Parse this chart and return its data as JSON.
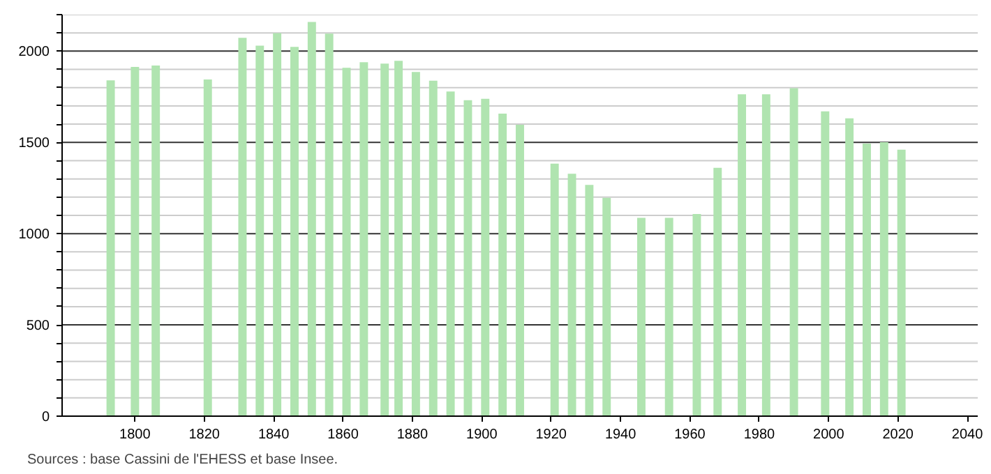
{
  "chart_data": {
    "type": "bar",
    "x": [
      1793,
      1800,
      1806,
      1821,
      1831,
      1836,
      1841,
      1846,
      1851,
      1856,
      1861,
      1866,
      1872,
      1876,
      1881,
      1886,
      1891,
      1896,
      1901,
      1906,
      1911,
      1921,
      1926,
      1931,
      1936,
      1946,
      1954,
      1962,
      1968,
      1975,
      1982,
      1990,
      1999,
      2006,
      2011,
      2016,
      2021
    ],
    "values": [
      1840,
      1914,
      1921,
      1845,
      2073,
      2030,
      2099,
      2023,
      2160,
      2096,
      1909,
      1939,
      1932,
      1947,
      1886,
      1838,
      1779,
      1731,
      1739,
      1658,
      1597,
      1384,
      1328,
      1267,
      1196,
      1087,
      1087,
      1108,
      1361,
      1764,
      1764,
      1797,
      1670,
      1632,
      1493,
      1501,
      1460
    ],
    "color": "#b0e4b0",
    "xlim": [
      1779,
      2043
    ],
    "xticks": [
      1800,
      1820,
      1840,
      1860,
      1880,
      1900,
      1920,
      1940,
      1960,
      1980,
      2000,
      2020,
      2040
    ],
    "ylim": [
      0,
      2200
    ],
    "yticks": [
      0,
      {
        "value": 100,
        "label": null
      },
      {
        "value": 200,
        "label": null
      },
      {
        "value": 300,
        "label": null
      },
      {
        "value": 400,
        "label": null
      },
      500,
      {
        "value": 600,
        "label": null
      },
      {
        "value": 700,
        "label": null
      },
      {
        "value": 800,
        "label": null
      },
      {
        "value": 900,
        "label": null
      },
      1000,
      {
        "value": 1100,
        "label": null
      },
      {
        "value": 1200,
        "label": null
      },
      {
        "value": 1300,
        "label": null
      },
      {
        "value": 1400,
        "label": null
      },
      1500,
      {
        "value": 1600,
        "label": null
      },
      {
        "value": 1700,
        "label": null
      },
      {
        "value": 1800,
        "label": null
      },
      {
        "value": 1900,
        "label": null
      },
      2000,
      {
        "value": 2100,
        "label": null
      },
      {
        "value": 2200,
        "label": null
      }
    ],
    "grid": "y",
    "annotations": [
      "Sources : base Cassini de l'EHESS et base Insee."
    ]
  }
}
